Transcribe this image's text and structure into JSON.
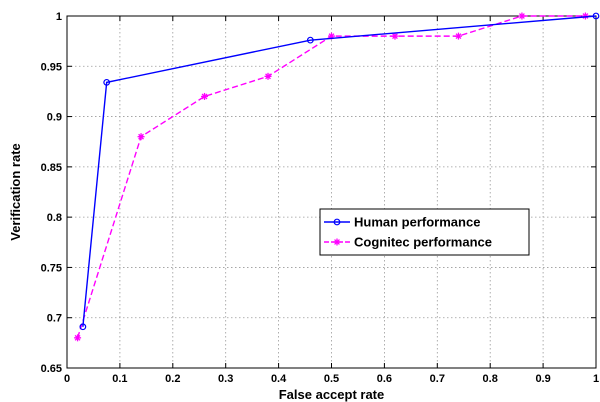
{
  "chart_data": {
    "type": "line",
    "title": "",
    "xlabel": "False accept rate",
    "ylabel": "Verification rate",
    "xlim": [
      0,
      1
    ],
    "ylim": [
      0.65,
      1
    ],
    "xticks": [
      0,
      0.1,
      0.2,
      0.3,
      0.4,
      0.5,
      0.6,
      0.7,
      0.8,
      0.9,
      1
    ],
    "xtick_labels": [
      "0",
      "0.1",
      "0.2",
      "0.3",
      "0.4",
      "0.5",
      "0.6",
      "0.7",
      "0.8",
      "0.9",
      "1"
    ],
    "yticks": [
      0.65,
      0.7,
      0.75,
      0.8,
      0.85,
      0.9,
      0.95,
      1
    ],
    "ytick_labels": [
      "0.65",
      "0.7",
      "0.75",
      "0.8",
      "0.85",
      "0.9",
      "0.95",
      "1"
    ],
    "grid": true,
    "legend_position": "right-middle",
    "series": [
      {
        "name": "Human performance",
        "color": "#0000ff",
        "line_style": "solid",
        "marker": "circle",
        "x": [
          0.03,
          0.075,
          0.46,
          1.0
        ],
        "y": [
          0.691,
          0.934,
          0.976,
          1.0
        ]
      },
      {
        "name": "Cognitec performance",
        "color": "#ff00ff",
        "line_style": "dashed",
        "marker": "star",
        "x": [
          0.02,
          0.14,
          0.26,
          0.38,
          0.5,
          0.62,
          0.74,
          0.86,
          0.98
        ],
        "y": [
          0.68,
          0.88,
          0.92,
          0.94,
          0.98,
          0.98,
          0.98,
          1.0,
          1.0
        ]
      }
    ]
  }
}
